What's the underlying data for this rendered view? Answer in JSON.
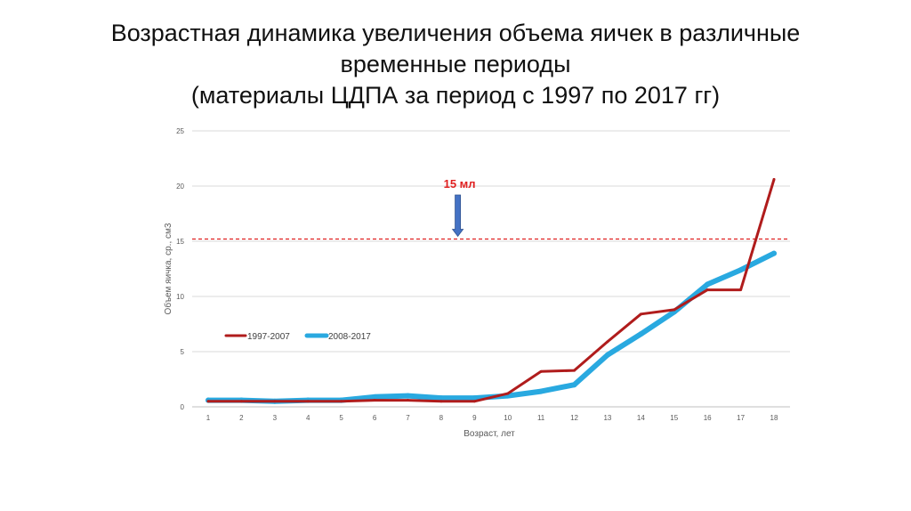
{
  "slide": {
    "title_lines": [
      "Возрастная динамика увеличения объема яичек в различные",
      "временные периоды",
      "(материалы ЦДПА за период с 1997 по 2017 гг)"
    ]
  },
  "chart_data": {
    "type": "line",
    "title": "",
    "xlabel": "Возраст, лет",
    "ylabel": "Объем яичка, ср., см3",
    "x": [
      1,
      2,
      3,
      4,
      5,
      6,
      7,
      8,
      9,
      10,
      11,
      12,
      13,
      14,
      15,
      16,
      17,
      18
    ],
    "x_tick_labels": [
      "1",
      "2",
      "3",
      "4",
      "5",
      "6",
      "7",
      "8",
      "9",
      "10",
      "11",
      "12",
      "13",
      "14",
      "15",
      "16",
      "17",
      "18"
    ],
    "ylim": [
      0,
      25
    ],
    "y_ticks": [
      0,
      5,
      10,
      15,
      20,
      25
    ],
    "y_tick_labels": [
      "0",
      "5",
      "10",
      "15",
      "20",
      "25"
    ],
    "grid": "horizontal",
    "series": [
      {
        "name": "1997-2007",
        "color": "#b01c1c",
        "values": [
          0.5,
          0.5,
          0.5,
          0.5,
          0.5,
          0.6,
          0.6,
          0.5,
          0.5,
          1.2,
          3.2,
          3.3,
          5.9,
          8.4,
          8.8,
          10.6,
          10.6,
          20.6
        ]
      },
      {
        "name": "2008-2017",
        "color": "#29a9e0",
        "values": [
          0.6,
          0.6,
          0.5,
          0.6,
          0.6,
          0.9,
          1.0,
          0.8,
          0.8,
          1.0,
          1.4,
          2.0,
          4.7,
          6.6,
          8.6,
          11.1,
          12.4,
          13.9
        ]
      }
    ],
    "legend_position": "inside-left",
    "reference_line": {
      "y": 15.2,
      "color": "#e02020",
      "style": "dashed"
    },
    "annotation": {
      "text": "15 мл",
      "x": 8.5,
      "arrow_color": "#4472c4"
    }
  }
}
